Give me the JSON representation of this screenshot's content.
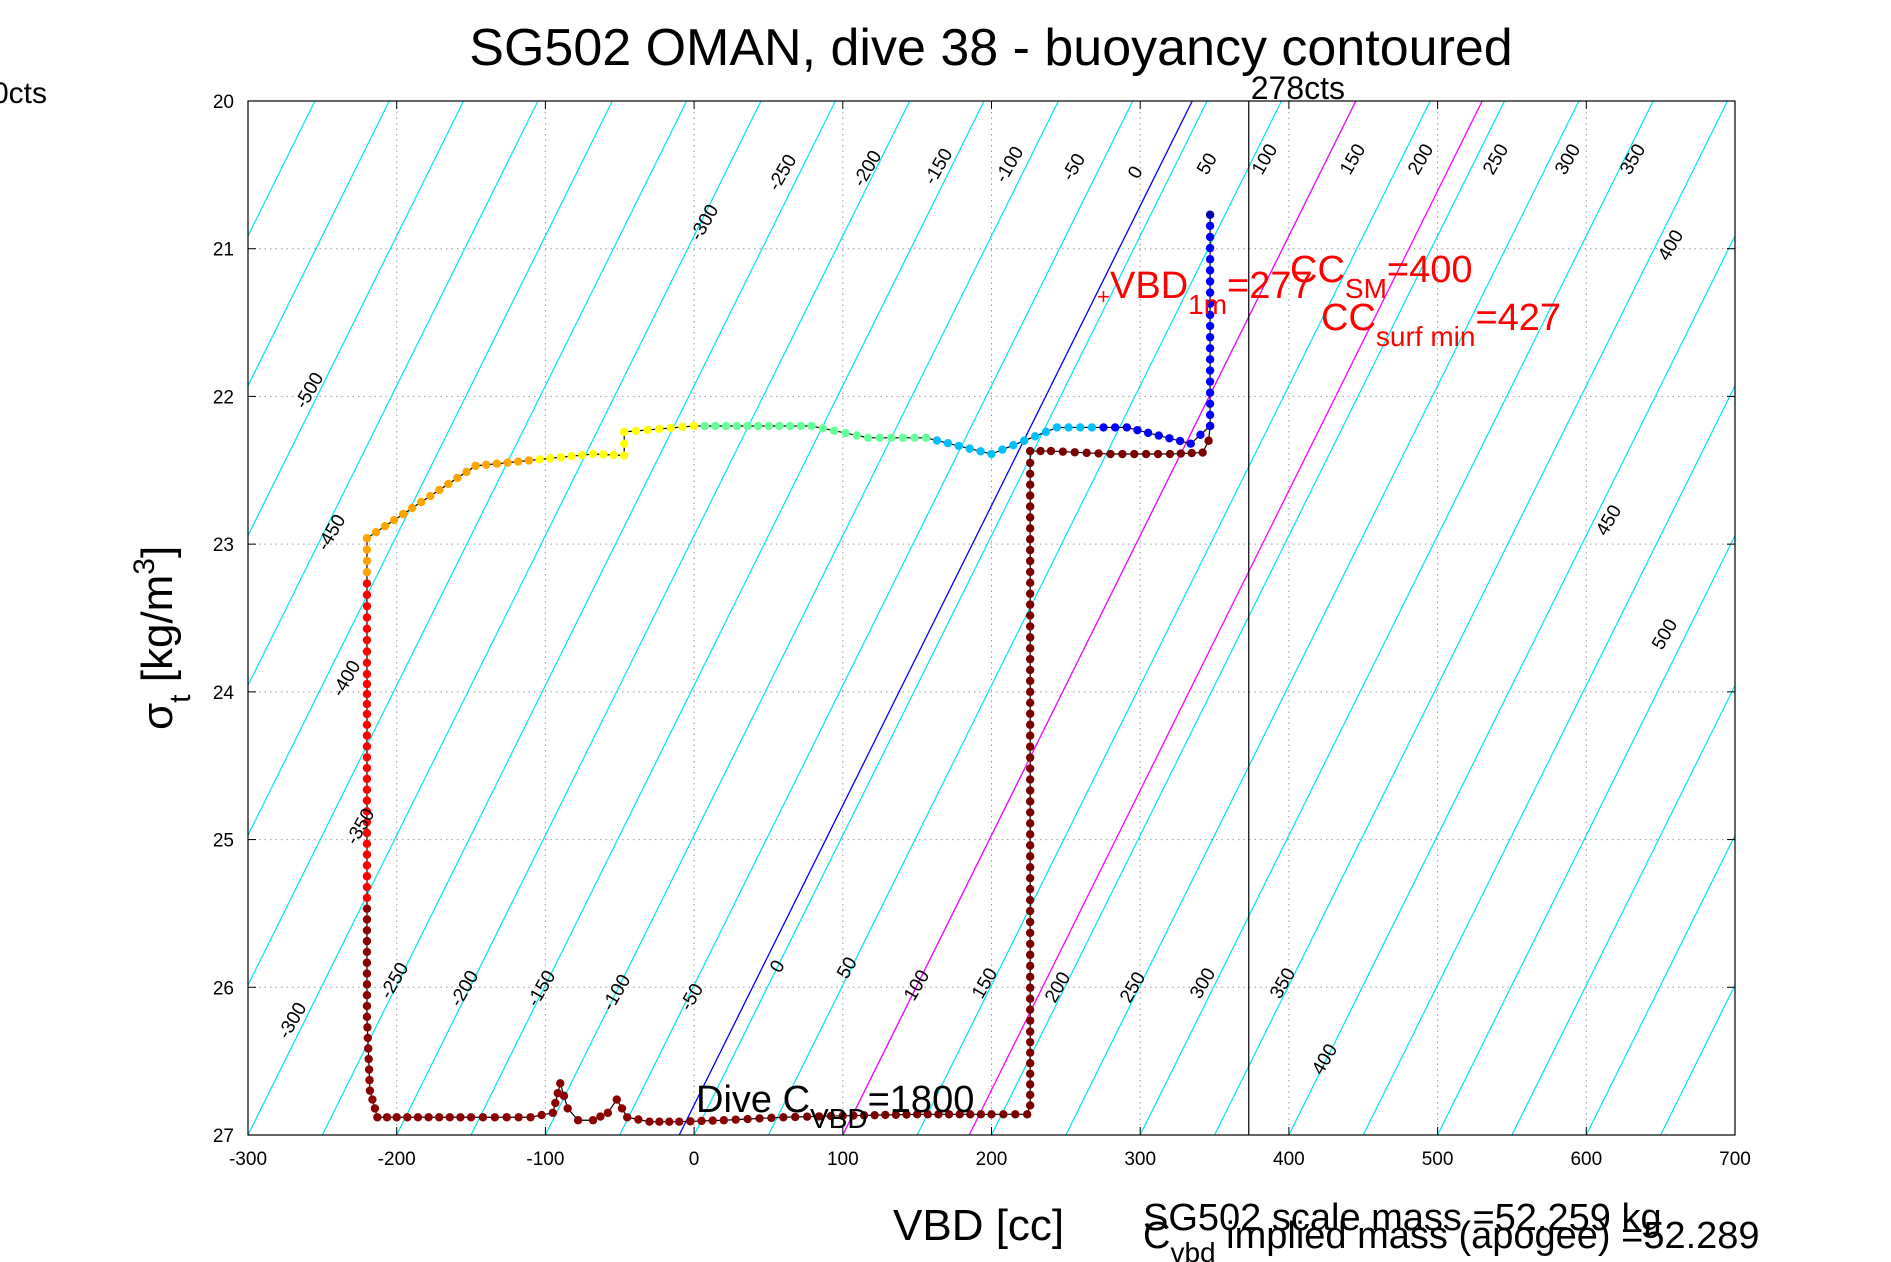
{
  "chart_data": {
    "type": "scatter",
    "title": "SG502 OMAN, dive 38 - buoyancy contoured",
    "xlabel": "VBD [cc]",
    "ylabel_main": "σ",
    "ylabel_sub": "t",
    "ylabel_rest": " [kg/m",
    "ylabel_sup": "3",
    "ylabel_close": "]",
    "xlim": [
      -300,
      700
    ],
    "ylim": [
      20,
      27
    ],
    "y_reversed": true,
    "grid": true,
    "xticks": [
      -300,
      -200,
      -100,
      0,
      100,
      200,
      300,
      400,
      500,
      600,
      700
    ],
    "yticks": [
      20,
      21,
      22,
      23,
      24,
      25,
      26,
      27
    ],
    "corner_label": "0cts",
    "vline": {
      "x": 373,
      "label": "278cts"
    },
    "contour_labels_upper": [
      "-500",
      "-450",
      "-400",
      "-350",
      "-300",
      "-250",
      "-200",
      "-150",
      "-100",
      "-50",
      "0",
      "50",
      "100",
      "150",
      "200",
      "250",
      "300",
      "350",
      "400",
      "450",
      "500"
    ],
    "contour_labels_lower": [
      "-300",
      "-250",
      "-200",
      "-150",
      "-100",
      "-50",
      "0",
      "50",
      "100",
      "150",
      "200",
      "250",
      "300",
      "350",
      "400"
    ],
    "annotations": {
      "dive_cvbd_prefix": "Dive C",
      "dive_cvbd_sub": "VBD",
      "dive_cvbd_value": "=1800",
      "vbd1m_prefix": "VBD",
      "vbd1m_sub": "1m",
      "vbd1m_value": "=277",
      "ccsm_prefix": "CC",
      "ccsm_sub": "SM",
      "ccsm_value": "=400",
      "ccsurf_prefix": "CC",
      "ccsurf_sub": "surf min",
      "ccsurf_value": "=427",
      "scale_mass": "SG502 scale mass =52.259 kg",
      "implied_prefix": "C",
      "implied_sub": "vbd",
      "implied_value": " implied mass (apogee) =52.289"
    },
    "reference_lines": [
      {
        "name": "blue",
        "color": "#0000ff",
        "x_at_27": -10,
        "x_at_20": 335
      },
      {
        "name": "magenta1",
        "color": "#ff00ff",
        "x_at_27": 100,
        "x_at_20": 445
      },
      {
        "name": "magenta2",
        "color": "#ff00ff",
        "x_at_27": 185,
        "x_at_20": 530
      }
    ],
    "colors": {
      "contour": "#00e5ee",
      "track": "#000000"
    },
    "dive_descent_track": [
      [
        347,
        20.77
      ],
      [
        347,
        21.9
      ],
      [
        347,
        22.2
      ],
      [
        334,
        22.32
      ],
      [
        291,
        22.21
      ],
      [
        244,
        22.21
      ],
      [
        200,
        22.39
      ],
      [
        156,
        22.28
      ],
      [
        117,
        22.28
      ],
      [
        79,
        22.2
      ],
      [
        43,
        22.2
      ],
      [
        0,
        22.2
      ],
      [
        -47,
        22.24
      ],
      [
        -47,
        22.4
      ],
      [
        -68,
        22.39
      ],
      [
        -147,
        22.47
      ],
      [
        -220,
        22.96
      ],
      [
        -220,
        23.88
      ],
      [
        -220,
        24.15
      ],
      [
        -220,
        26.2
      ],
      [
        -218,
        26.7
      ],
      [
        -213,
        26.88
      ],
      [
        -200,
        26.88
      ],
      [
        -150,
        26.88
      ],
      [
        -110,
        26.88
      ],
      [
        -95,
        26.85
      ],
      [
        -90,
        26.65
      ],
      [
        -85,
        26.82
      ],
      [
        -78,
        26.9
      ],
      [
        -68,
        26.9
      ],
      [
        -58,
        26.85
      ],
      [
        -52,
        26.76
      ],
      [
        -45,
        26.88
      ],
      [
        -30,
        26.91
      ],
      [
        -10,
        26.91
      ],
      [
        20,
        26.9
      ],
      [
        60,
        26.88
      ],
      [
        100,
        26.87
      ],
      [
        150,
        26.86
      ],
      [
        200,
        26.86
      ],
      [
        224,
        26.86
      ],
      [
        226,
        26.8
      ],
      [
        226,
        26.3
      ],
      [
        226,
        24.0
      ],
      [
        226,
        22.45
      ],
      [
        226,
        22.37
      ],
      [
        240,
        22.37
      ],
      [
        280,
        22.39
      ],
      [
        320,
        22.39
      ],
      [
        342,
        22.38
      ],
      [
        346,
        22.3
      ],
      [
        347,
        22.2
      ]
    ]
  }
}
